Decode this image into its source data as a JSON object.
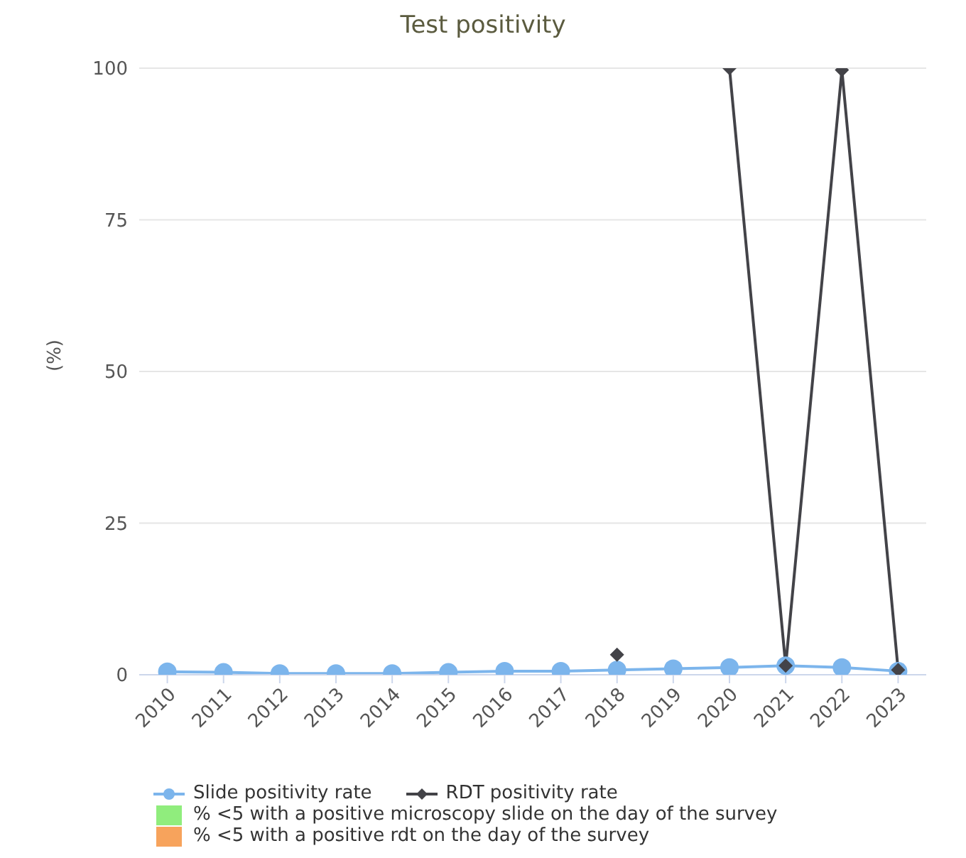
{
  "chart_data": {
    "type": "line",
    "title": "Test positivity",
    "ylabel": "(%)",
    "categories": [
      "2010",
      "2011",
      "2012",
      "2013",
      "2014",
      "2015",
      "2016",
      "2017",
      "2018",
      "2019",
      "2020",
      "2021",
      "2022",
      "2023"
    ],
    "series": [
      {
        "name": "Slide positivity rate",
        "color": "#7cb5ec",
        "marker": "circle",
        "values": [
          0.5,
          0.4,
          0.2,
          0.2,
          0.2,
          0.4,
          0.6,
          0.6,
          0.8,
          1.0,
          1.2,
          1.5,
          1.2,
          0.6
        ]
      },
      {
        "name": "RDT positivity rate",
        "color": "#434348",
        "marker": "diamond",
        "values": [
          null,
          null,
          null,
          null,
          null,
          null,
          null,
          null,
          3.3,
          null,
          100,
          1.5,
          99.7,
          0.8
        ]
      },
      {
        "name": "% <5 with a positive microscopy slide on the day of the survey",
        "type": "bar",
        "color": "#90ed7d",
        "values": [
          null,
          null,
          null,
          null,
          null,
          null,
          null,
          null,
          null,
          null,
          null,
          null,
          null,
          null
        ]
      },
      {
        "name": "% <5 with a positive rdt on the day of the survey",
        "type": "bar",
        "color": "#f7a35c",
        "values": [
          null,
          null,
          null,
          null,
          null,
          null,
          null,
          null,
          null,
          null,
          null,
          null,
          null,
          null
        ]
      }
    ],
    "ylim": [
      0,
      100
    ],
    "yticks": [
      0,
      25,
      50,
      75,
      100
    ],
    "grid": "y",
    "legend": "bottom"
  }
}
